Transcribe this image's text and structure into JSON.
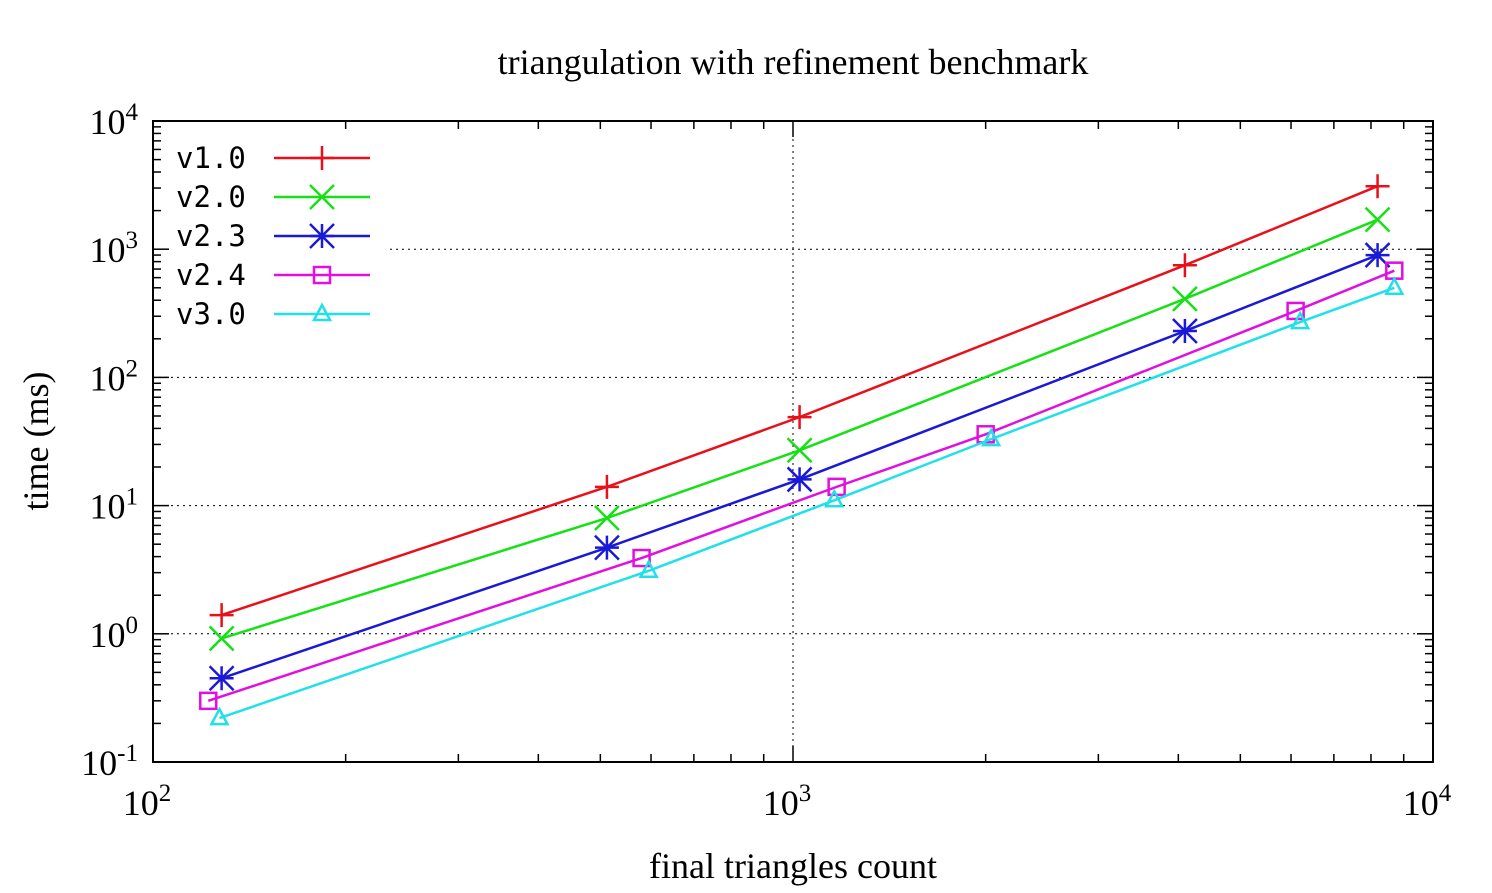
{
  "chart_data": {
    "type": "line",
    "title": "triangulation with refinement benchmark",
    "xlabel": "final triangles count",
    "ylabel": "time (ms)",
    "x_scale": "log10",
    "y_scale": "log10",
    "xlim": [
      100,
      10000
    ],
    "ylim": [
      0.1,
      10000
    ],
    "x_ticks": [
      {
        "value": 100,
        "base": "10",
        "exp": "2"
      },
      {
        "value": 1000,
        "base": "10",
        "exp": "3"
      },
      {
        "value": 10000,
        "base": "10",
        "exp": "4"
      }
    ],
    "y_ticks": [
      {
        "value": 0.1,
        "base": "10",
        "exp": "-1"
      },
      {
        "value": 1,
        "base": "10",
        "exp": "0"
      },
      {
        "value": 10,
        "base": "10",
        "exp": "1"
      },
      {
        "value": 100,
        "base": "10",
        "exp": "2"
      },
      {
        "value": 1000,
        "base": "10",
        "exp": "3"
      },
      {
        "value": 10000,
        "base": "10",
        "exp": "4"
      }
    ],
    "grid": true,
    "legend_position": "top-left",
    "series": [
      {
        "name": "v1.0",
        "color": "#e8101a",
        "marker": "plus",
        "x": [
          128,
          512,
          1024,
          4096,
          8192
        ],
        "y": [
          1.4,
          14,
          49,
          750,
          3100
        ]
      },
      {
        "name": "v2.0",
        "color": "#16e016",
        "marker": "cross",
        "x": [
          128,
          512,
          1024,
          4096,
          8192
        ],
        "y": [
          0.92,
          8.0,
          27,
          410,
          1700
        ]
      },
      {
        "name": "v2.3",
        "color": "#1a1ad6",
        "marker": "star",
        "x": [
          128,
          512,
          1024,
          4096,
          8192
        ],
        "y": [
          0.45,
          4.7,
          16,
          230,
          900
        ]
      },
      {
        "name": "v2.4",
        "color": "#e010e0",
        "marker": "square",
        "x": [
          122,
          580,
          1170,
          2000,
          6100,
          8700
        ],
        "y": [
          0.3,
          3.9,
          14,
          36,
          330,
          680
        ]
      },
      {
        "name": "v3.0",
        "color": "#20e0e8",
        "marker": "triangle",
        "x": [
          127,
          595,
          1160,
          2040,
          6200,
          8700
        ],
        "y": [
          0.22,
          3.1,
          11,
          33,
          270,
          500
        ]
      }
    ]
  }
}
